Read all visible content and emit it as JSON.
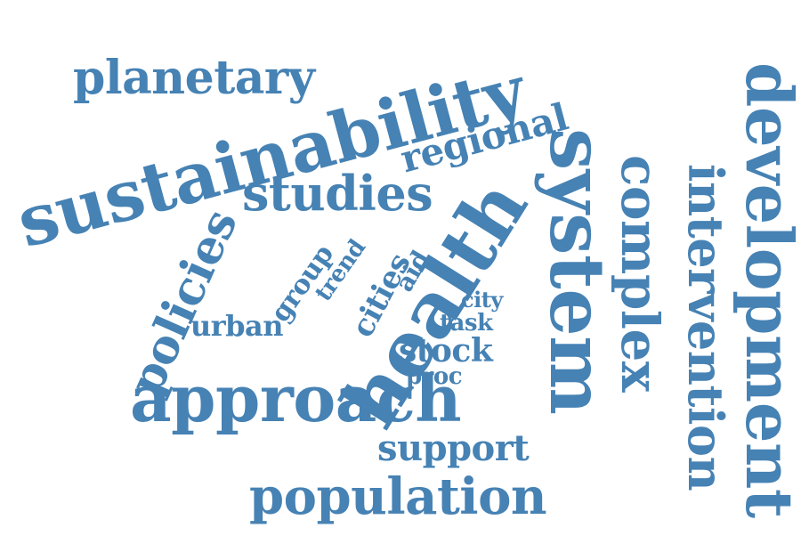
{
  "palette": {
    "word_color": "#4682b4",
    "background": "#ffffff"
  },
  "words": {
    "sustainability": "sustainability",
    "planetary": "planetary",
    "regional": "regional",
    "studies": "studies",
    "policies": "policies",
    "health": "health",
    "system": "system",
    "complex": "complex",
    "intervention": "intervention",
    "development": "development",
    "approach": "approach",
    "population": "population",
    "support": "support",
    "stock": "stock",
    "proc": "proc",
    "task": "task",
    "city": "city",
    "urban": "urban",
    "group": "group",
    "trend": "trend",
    "cities": "cities",
    "aid": "aid"
  }
}
